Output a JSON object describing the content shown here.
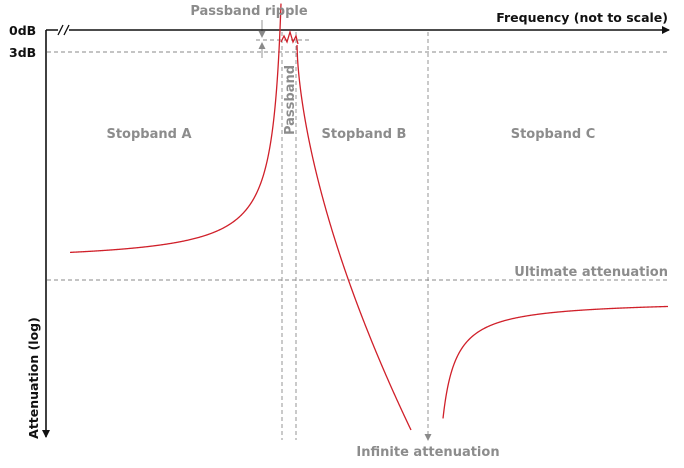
{
  "axes": {
    "x_label": "Frequency (not to scale)",
    "y_label": "Attenuation (log)",
    "tick_0db": "0dB",
    "tick_3db": "3dB",
    "break_mark": "//"
  },
  "regions": {
    "stopband_a": "Stopband A",
    "passband": "Passband",
    "stopband_b": "Stopband B",
    "stopband_c": "Stopband C"
  },
  "annotations": {
    "passband_ripple": "Passband ripple",
    "ultimate_attenuation": "Ultimate attenuation",
    "infinite_attenuation": "Infinite attenuation"
  },
  "colors": {
    "curve": "#d0202a",
    "axis": "#111111",
    "guide": "#8a8a8a",
    "label_grey": "#8c8c8c"
  }
}
